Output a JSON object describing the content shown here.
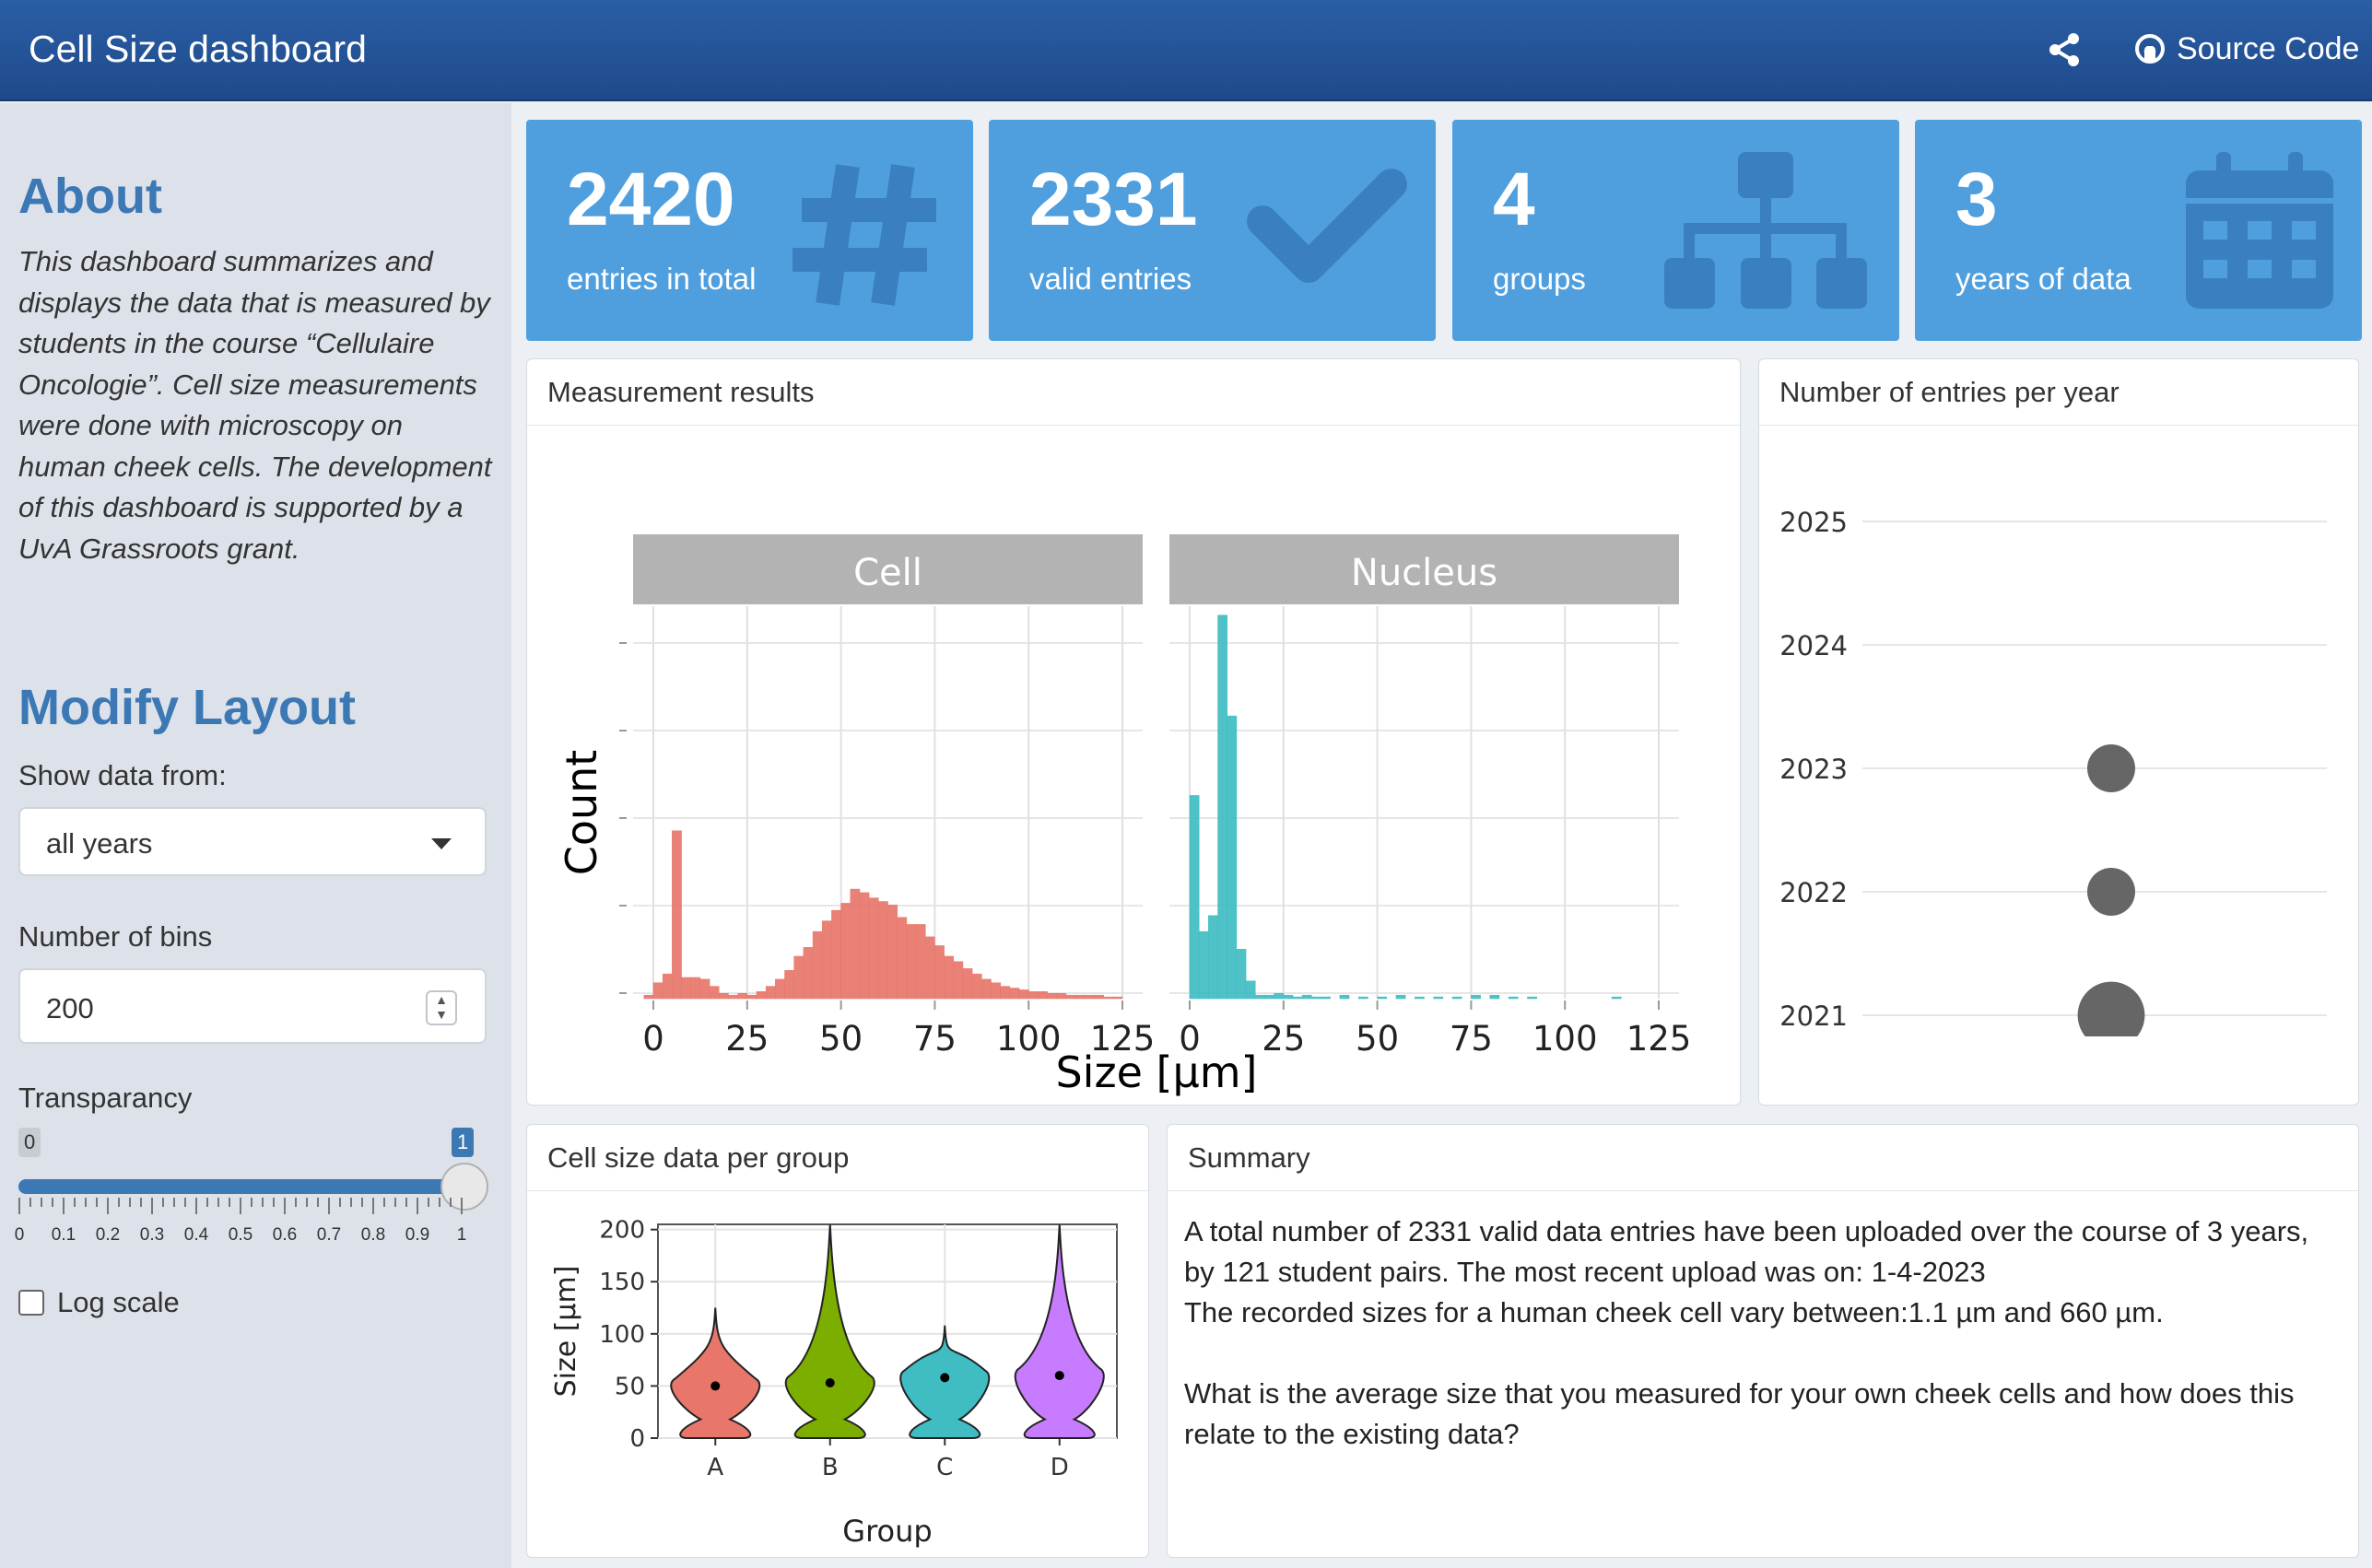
{
  "navbar": {
    "title": "Cell Size dashboard",
    "source_label": "Source Code"
  },
  "sidebar": {
    "about_heading": "About",
    "about_text": "This dashboard summarizes and displays the data that is measured by students in the course “Cellulaire Oncologie”. Cell size measurements were done with microscopy on human cheek cells. The development of this dashboard is supported by a UvA Grassroots grant.",
    "layout_heading": "Modify Layout",
    "show_data_label": "Show data from:",
    "show_data_value": "all years",
    "bins_label": "Number of bins",
    "bins_value": "200",
    "transparency_label": "Transparancy",
    "slider_min_badge": "0",
    "slider_max_badge": "1",
    "slider_value": 1,
    "slider_ticks": [
      "0",
      "0.1",
      "0.2",
      "0.3",
      "0.4",
      "0.5",
      "0.6",
      "0.7",
      "0.8",
      "0.9",
      "1"
    ],
    "log_scale_label": "Log scale"
  },
  "value_boxes": [
    {
      "value": "2420",
      "label": "entries in total",
      "icon": "hash-icon"
    },
    {
      "value": "2331",
      "label": "valid entries",
      "icon": "check-icon"
    },
    {
      "value": "4",
      "label": "groups",
      "icon": "sitemap-icon"
    },
    {
      "value": "3",
      "label": "years of data",
      "icon": "calendar-icon"
    }
  ],
  "cards": {
    "measurement": "Measurement results",
    "entries_per_year": "Number of entries per year",
    "per_group": "Cell size data per group",
    "summary": "Summary"
  },
  "summary": {
    "line1": "A total number of 2331 valid data entries have been uploaded over the course of 3 years, by 121 student pairs. The most recent upload was on: 1-4-2023",
    "line2": "The recorded sizes for a human cheek cell vary between:1.1 µm and 660 µm.",
    "question": "What is the average size that you measured for your own cheek cells and how does this relate to the existing data?"
  },
  "colors": {
    "accent": "#3c78b4",
    "valuebox": "#4f9fdf",
    "navbar": "#1e4a8a",
    "cell": "#e8766b",
    "nucleus": "#3fbdc2"
  },
  "chart_data": [
    {
      "type": "bar",
      "subtype": "histogram",
      "facets": [
        "Cell",
        "Nucleus"
      ],
      "xlabel": "Size [µm]",
      "ylabel": "Count",
      "xlim": [
        0,
        125
      ],
      "xticks": [
        "0",
        "25",
        "50",
        "75",
        "100",
        "125"
      ],
      "bin_width": 2.5,
      "series": [
        {
          "name": "Cell",
          "color": "#e8766b",
          "x": [
            -1.25,
            1.25,
            3.75,
            6.25,
            8.75,
            11.25,
            13.75,
            16.25,
            18.75,
            21.25,
            23.75,
            26.25,
            28.75,
            31.25,
            33.75,
            36.25,
            38.75,
            41.25,
            43.75,
            46.25,
            48.75,
            51.25,
            53.75,
            56.25,
            58.75,
            61.25,
            63.75,
            66.25,
            68.75,
            71.25,
            73.75,
            76.25,
            78.75,
            81.25,
            83.75,
            86.25,
            88.75,
            91.25,
            93.75,
            96.25,
            98.75,
            101.25,
            103.75,
            106.25,
            108.75,
            111.25,
            113.75,
            116.25,
            118.75,
            121.25,
            123.75
          ],
          "values": [
            2,
            9,
            14,
            95,
            12,
            12,
            11,
            7,
            3,
            2,
            3,
            2,
            4,
            7,
            11,
            16,
            24,
            29,
            38,
            44,
            50,
            54,
            62,
            60,
            57,
            55,
            53,
            46,
            42,
            42,
            35,
            30,
            24,
            21,
            17,
            14,
            11,
            9,
            7,
            6,
            5,
            4,
            4,
            3,
            3,
            2,
            2,
            2,
            2,
            1,
            1
          ]
        },
        {
          "name": "Nucleus",
          "color": "#3fbdc2",
          "x": [
            1.25,
            3.75,
            6.25,
            8.75,
            11.25,
            13.75,
            16.25,
            18.75,
            21.25,
            23.75,
            26.25,
            28.75,
            31.25,
            33.75,
            36.25,
            41.25,
            46.25,
            51.25,
            56.25,
            61.25,
            66.25,
            71.25,
            76.25,
            81.25,
            86.25,
            91.25,
            113.75
          ],
          "values": [
            115,
            38,
            47,
            217,
            160,
            28,
            10,
            2,
            2,
            3,
            2,
            1,
            2,
            1,
            1,
            2,
            1,
            1,
            2,
            1,
            1,
            1,
            2,
            2,
            1,
            1,
            1
          ]
        }
      ],
      "ylim": [
        0,
        220
      ]
    },
    {
      "type": "scatter",
      "subtype": "bubble",
      "title": "Number of entries per year",
      "y_categories": [
        "2025",
        "2024",
        "2023",
        "2022",
        "2021"
      ],
      "points": [
        {
          "year": "2023",
          "size": 1
        },
        {
          "year": "2022",
          "size": 1
        },
        {
          "year": "2021",
          "size": 1.4
        }
      ],
      "color": "#666666"
    },
    {
      "type": "violin",
      "xlabel": "Group",
      "ylabel": "Size [µm]",
      "categories": [
        "A",
        "B",
        "C",
        "D"
      ],
      "colors": [
        "#e8766b",
        "#7cae00",
        "#3fbdc2",
        "#c77cff"
      ],
      "medians": [
        50,
        53,
        58,
        60
      ],
      "maxima": [
        125,
        205,
        108,
        205
      ],
      "ylim": [
        0,
        205
      ],
      "yticks": [
        "0",
        "50",
        "100",
        "150",
        "200"
      ]
    }
  ]
}
